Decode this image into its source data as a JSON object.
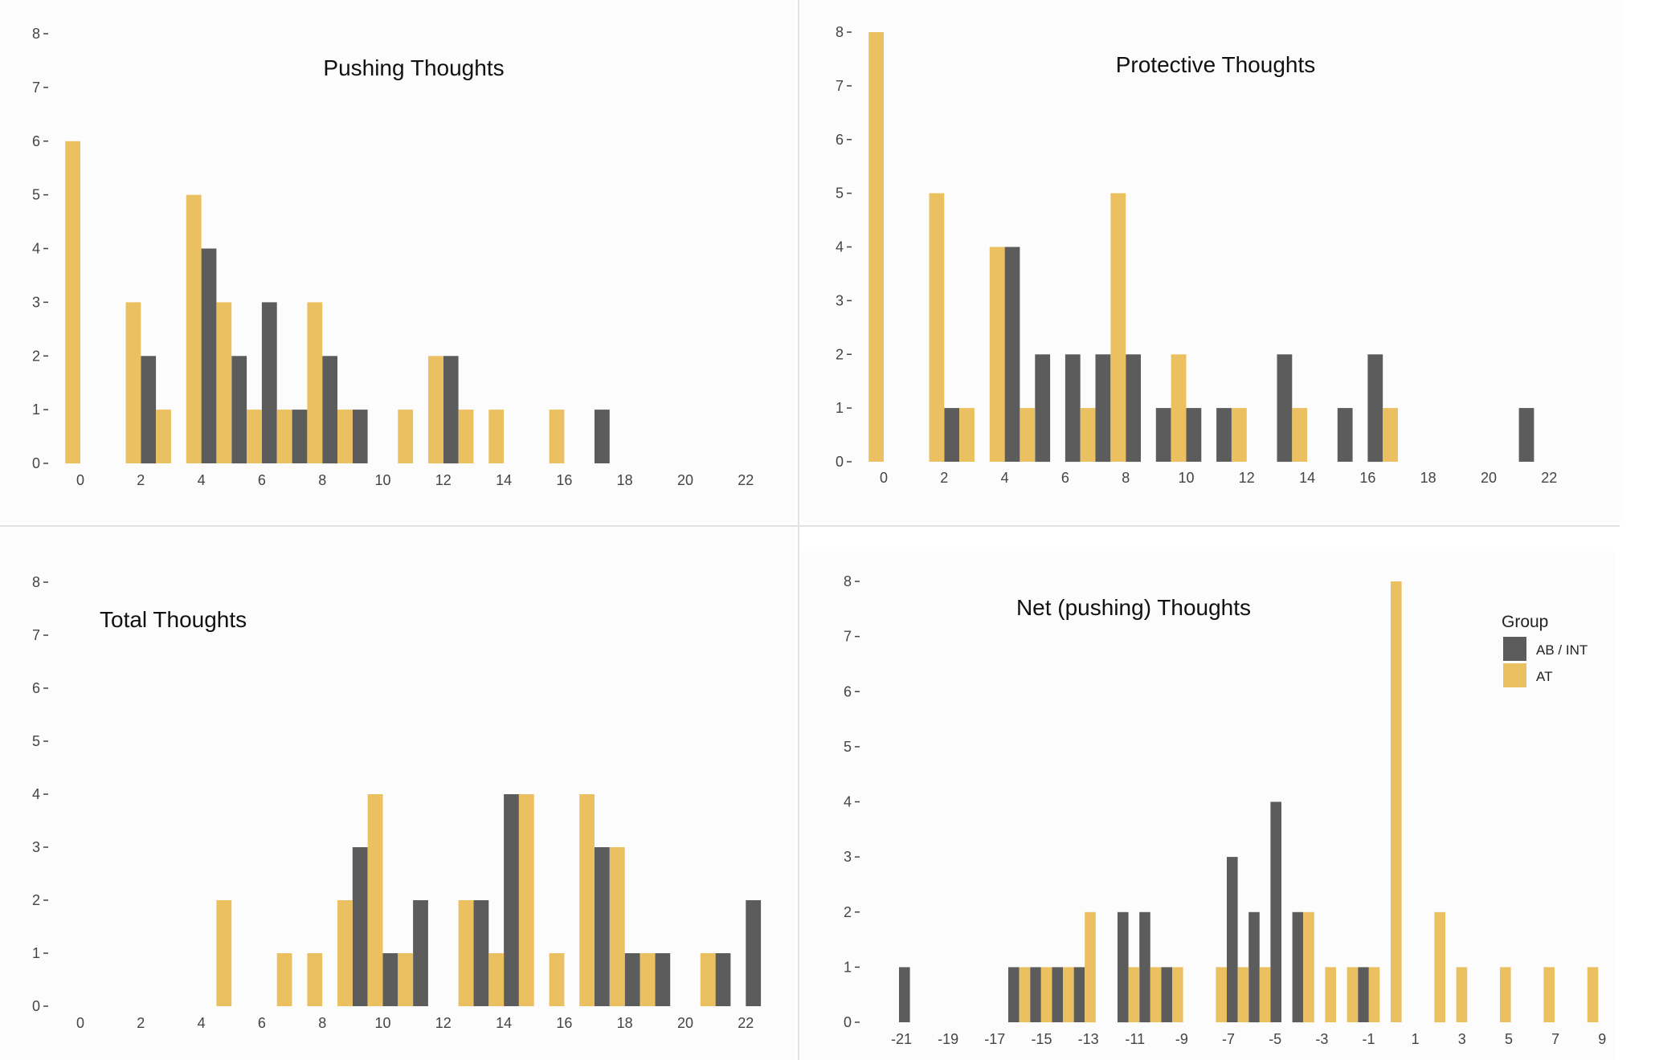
{
  "colors": {
    "AB / INT": "#5c5c5c",
    "AT": "#ebc060",
    "panel_background": "#fcfcfc"
  },
  "legend": {
    "title": "Group",
    "placement": "top-right of Net (pushing) Thoughts panel",
    "entries": [
      "AB / INT",
      "AT"
    ]
  },
  "chart_data": [
    {
      "type": "bar",
      "title": "Pushing Thoughts",
      "xlabel": "",
      "ylabel": "",
      "x_ticks": [
        0,
        2,
        4,
        6,
        8,
        10,
        12,
        14,
        16,
        18,
        20,
        22
      ],
      "y_ticks": [
        0,
        1,
        2,
        3,
        4,
        5,
        6,
        7,
        8
      ],
      "xlim": [
        -0.5,
        22.5
      ],
      "ylim": [
        0,
        8
      ],
      "grid": false,
      "series": [
        {
          "name": "AB / INT",
          "points": [
            [
              2,
              2
            ],
            [
              4,
              4
            ],
            [
              5,
              2
            ],
            [
              6,
              3
            ],
            [
              7,
              1
            ],
            [
              8,
              2
            ],
            [
              9,
              1
            ],
            [
              12,
              2
            ],
            [
              17,
              1
            ]
          ]
        },
        {
          "name": "AT",
          "points": [
            [
              0,
              6
            ],
            [
              2,
              3
            ],
            [
              3,
              1
            ],
            [
              4,
              5
            ],
            [
              5,
              3
            ],
            [
              6,
              1
            ],
            [
              7,
              1
            ],
            [
              8,
              3
            ],
            [
              9,
              1
            ],
            [
              11,
              1
            ],
            [
              12,
              2
            ],
            [
              13,
              1
            ],
            [
              14,
              1
            ],
            [
              16,
              1
            ]
          ]
        }
      ]
    },
    {
      "type": "bar",
      "title": "Protective Thoughts",
      "xlabel": "",
      "ylabel": "",
      "x_ticks": [
        0,
        2,
        4,
        6,
        8,
        10,
        12,
        14,
        16,
        18,
        20,
        22
      ],
      "y_ticks": [
        0,
        1,
        2,
        3,
        4,
        5,
        6,
        7,
        8
      ],
      "xlim": [
        -0.5,
        22.5
      ],
      "ylim": [
        0,
        8
      ],
      "grid": false,
      "series": [
        {
          "name": "AB / INT",
          "points": [
            [
              2,
              1
            ],
            [
              4,
              4
            ],
            [
              5,
              2
            ],
            [
              6,
              2
            ],
            [
              7,
              2
            ],
            [
              8,
              2
            ],
            [
              9,
              1
            ],
            [
              10,
              1
            ],
            [
              11,
              1
            ],
            [
              13,
              2
            ],
            [
              15,
              1
            ],
            [
              16,
              2
            ],
            [
              21,
              1
            ]
          ]
        },
        {
          "name": "AT",
          "points": [
            [
              0,
              8
            ],
            [
              2,
              5
            ],
            [
              3,
              1
            ],
            [
              4,
              4
            ],
            [
              5,
              1
            ],
            [
              7,
              1
            ],
            [
              8,
              5
            ],
            [
              10,
              2
            ],
            [
              12,
              1
            ],
            [
              14,
              1
            ],
            [
              17,
              1
            ]
          ]
        }
      ]
    },
    {
      "type": "bar",
      "title": "Total Thoughts",
      "xlabel": "",
      "ylabel": "",
      "x_ticks": [
        0,
        2,
        4,
        6,
        8,
        10,
        12,
        14,
        16,
        18,
        20,
        22
      ],
      "y_ticks": [
        0,
        1,
        2,
        3,
        4,
        5,
        6,
        7,
        8
      ],
      "xlim": [
        -0.5,
        22.5
      ],
      "ylim": [
        0,
        8
      ],
      "grid": false,
      "series": [
        {
          "name": "AB / INT",
          "points": [
            [
              9,
              3
            ],
            [
              10,
              1
            ],
            [
              11,
              2
            ],
            [
              13,
              2
            ],
            [
              14,
              4
            ],
            [
              17,
              3
            ],
            [
              18,
              1
            ],
            [
              19,
              1
            ],
            [
              21,
              1
            ],
            [
              22,
              2
            ]
          ]
        },
        {
          "name": "AT",
          "points": [
            [
              5,
              2
            ],
            [
              7,
              1
            ],
            [
              8,
              1
            ],
            [
              9,
              2
            ],
            [
              10,
              4
            ],
            [
              11,
              1
            ],
            [
              13,
              2
            ],
            [
              14,
              1
            ],
            [
              15,
              4
            ],
            [
              16,
              1
            ],
            [
              17,
              4
            ],
            [
              18,
              3
            ],
            [
              19,
              1
            ],
            [
              21,
              1
            ]
          ]
        }
      ]
    },
    {
      "type": "bar",
      "title": "Net (pushing) Thoughts",
      "xlabel": "",
      "ylabel": "",
      "x_ticks": [
        -21,
        -19,
        -17,
        -15,
        -13,
        -11,
        -9,
        -7,
        -5,
        -3,
        -1,
        1,
        3,
        5,
        7,
        9
      ],
      "y_ticks": [
        0,
        1,
        2,
        3,
        4,
        5,
        6,
        7,
        8
      ],
      "xlim": [
        -22,
        10
      ],
      "ylim": [
        0,
        8
      ],
      "grid": false,
      "series": [
        {
          "name": "AB / INT",
          "points": [
            [
              -22,
              1
            ],
            [
              -17,
              1
            ],
            [
              -16,
              1
            ],
            [
              -15,
              1
            ],
            [
              -14,
              1
            ],
            [
              -12,
              2
            ],
            [
              -11,
              2
            ],
            [
              -10,
              1
            ],
            [
              -7,
              3
            ],
            [
              -6,
              2
            ],
            [
              -5,
              4
            ],
            [
              -4,
              2
            ],
            [
              -1,
              1
            ]
          ]
        },
        {
          "name": "AT",
          "points": [
            [
              -17,
              1
            ],
            [
              -16,
              1
            ],
            [
              -15,
              1
            ],
            [
              -14,
              2
            ],
            [
              -12,
              1
            ],
            [
              -11,
              1
            ],
            [
              -10,
              1
            ],
            [
              -8,
              1
            ],
            [
              -7,
              1
            ],
            [
              -6,
              1
            ],
            [
              -4,
              2
            ],
            [
              -3,
              1
            ],
            [
              -2,
              1
            ],
            [
              -1,
              1
            ],
            [
              0,
              8
            ],
            [
              2,
              2
            ],
            [
              3,
              1
            ],
            [
              5,
              1
            ],
            [
              7,
              1
            ],
            [
              9,
              1
            ]
          ]
        }
      ]
    }
  ]
}
